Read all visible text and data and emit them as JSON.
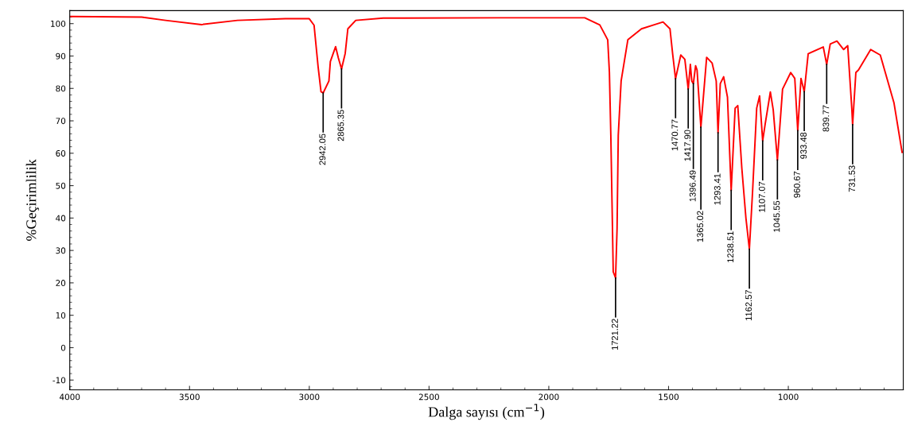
{
  "chart_data": {
    "type": "line",
    "xlabel": "Dalga sayısı (cm$^{−1}$)",
    "ylabel": "%Geçirimlilik",
    "xlim": [
      4000,
      520
    ],
    "ylim": [
      -13,
      104
    ],
    "xticks": [
      4000,
      3500,
      3000,
      2500,
      2000,
      1500,
      1000
    ],
    "yticks": [
      -10,
      0,
      10,
      20,
      30,
      40,
      50,
      60,
      70,
      80,
      90,
      100
    ],
    "grid": false,
    "legend": false,
    "marker": "none",
    "line_style": "solid",
    "series": [
      {
        "color": "#ff0000",
        "x": [
          4000,
          3700,
          3600,
          3450,
          3300,
          3100,
          3000,
          2980,
          2963,
          2951,
          2942.05,
          2918,
          2912,
          2890,
          2879,
          2865.35,
          2850,
          2839,
          2806,
          2691,
          2200,
          1850,
          1787,
          1754,
          1747,
          1741,
          1736,
          1731,
          1721.22,
          1715,
          1710,
          1698,
          1670,
          1613,
          1557,
          1523,
          1494,
          1483,
          1470.77,
          1449,
          1432,
          1417.9,
          1409,
          1403,
          1396.49,
          1387,
          1381,
          1365.02,
          1341,
          1318,
          1301,
          1293.41,
          1284,
          1270,
          1254,
          1238.51,
          1222,
          1211,
          1194,
          1177,
          1162.57,
          1149,
          1132,
          1120,
          1107.07,
          1097,
          1075,
          1063,
          1045.55,
          1024,
          990,
          973,
          960.67,
          947,
          933.48,
          917,
          854,
          839.77,
          825,
          797,
          769,
          752,
          735,
          731.53,
          718,
          707,
          656,
          616,
          559,
          525
        ],
        "values": [
          102.2,
          102,
          101,
          99.7,
          101,
          101.5,
          101.5,
          99.5,
          86.6,
          79,
          78.6,
          82.3,
          88.3,
          92.9,
          89.5,
          86,
          90.8,
          98.4,
          101,
          101.7,
          101.8,
          101.8,
          99.6,
          95,
          85,
          65.5,
          44.6,
          23.4,
          21.5,
          36.7,
          65.5,
          82.3,
          95,
          98.4,
          99.7,
          100.5,
          98.4,
          90.7,
          83,
          90.3,
          89,
          79.8,
          87.4,
          82.3,
          81.5,
          87,
          85.7,
          68,
          89.6,
          87.8,
          82.3,
          66.3,
          81.5,
          83.6,
          77.3,
          48.5,
          73.9,
          74.7,
          55.3,
          40,
          30.4,
          48.5,
          73.9,
          77.7,
          63.8,
          68.8,
          78.9,
          73.4,
          57.9,
          79.8,
          84.9,
          83.1,
          67,
          83.1,
          79,
          90.7,
          92.8,
          87.4,
          93.7,
          94.6,
          92,
          93.2,
          73.9,
          68.8,
          84.9,
          85.7,
          92,
          90.3,
          75.6,
          60.3
        ]
      }
    ],
    "annotations": [
      {
        "text": "2942.05",
        "x": 2942.05,
        "y": 78.6
      },
      {
        "text": "2865.35",
        "x": 2865.35,
        "y": 86
      },
      {
        "text": "1721.22",
        "x": 1721.22,
        "y": 21.5
      },
      {
        "text": "1470.77",
        "x": 1470.77,
        "y": 83
      },
      {
        "text": "1417.90",
        "x": 1417.9,
        "y": 79.8
      },
      {
        "text": "1396.49",
        "x": 1396.49,
        "y": 81.5
      },
      {
        "text": "1365.02",
        "x": 1365.02,
        "y": 68
      },
      {
        "text": "1293.41",
        "x": 1293.41,
        "y": 66.3
      },
      {
        "text": "1238.51",
        "x": 1238.51,
        "y": 48.5
      },
      {
        "text": "1162.57",
        "x": 1162.57,
        "y": 30.4
      },
      {
        "text": "1107.07",
        "x": 1107.07,
        "y": 63.8
      },
      {
        "text": "1045.55",
        "x": 1045.55,
        "y": 57.9
      },
      {
        "text": "960.67",
        "x": 960.67,
        "y": 67
      },
      {
        "text": "933.48",
        "x": 933.48,
        "y": 79
      },
      {
        "text": "839.77",
        "x": 839.77,
        "y": 87.4
      },
      {
        "text": "731.53",
        "x": 731.53,
        "y": 68.8
      }
    ]
  }
}
